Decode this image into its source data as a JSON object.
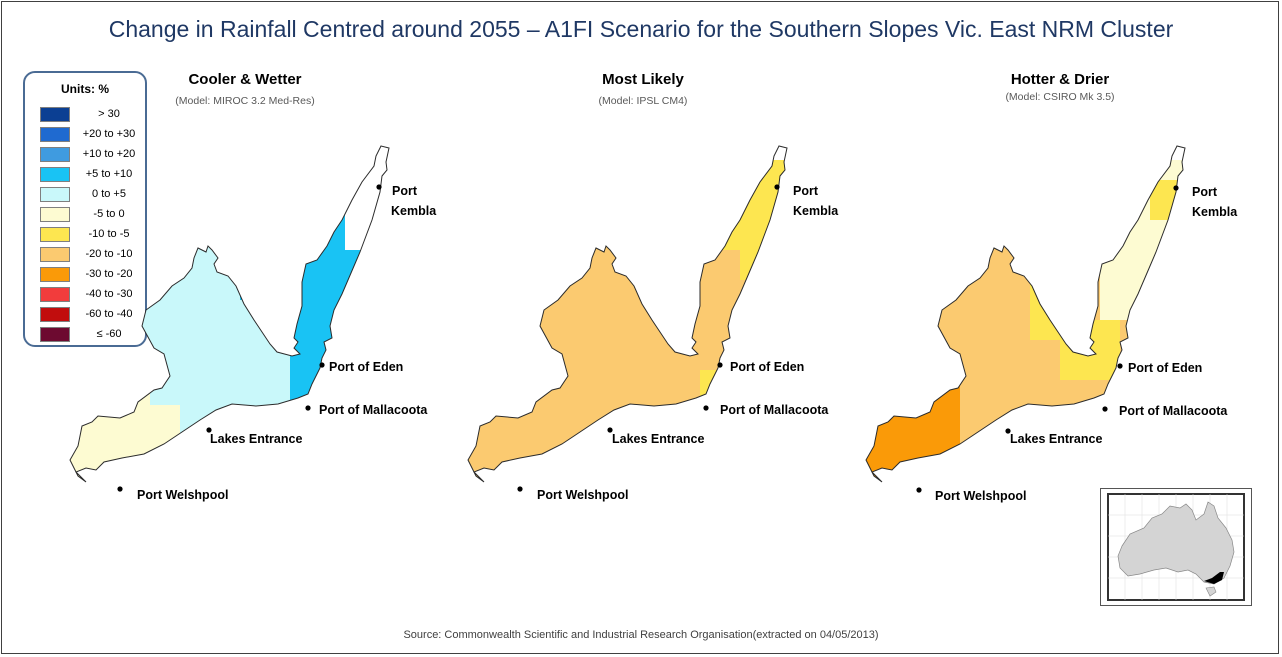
{
  "title": "Change in Rainfall Centred around 2055 – A1FI Scenario for the Southern Slopes Vic. East NRM Cluster",
  "legend": {
    "title": "Units: %",
    "items": [
      {
        "label": "> 30",
        "color": "#0b3f93"
      },
      {
        "label": "+20 to +30",
        "color": "#1f6ad0"
      },
      {
        "label": "+10 to +20",
        "color": "#3f9be0"
      },
      {
        "label": "+5 to +10",
        "color": "#19c3f4"
      },
      {
        "label": "0 to +5",
        "color": "#c9f8fa"
      },
      {
        "label": "-5 to 0",
        "color": "#fdfbd2"
      },
      {
        "label": "-10 to -5",
        "color": "#fde650"
      },
      {
        "label": "-20 to -10",
        "color": "#fbca70"
      },
      {
        "label": "-30 to -20",
        "color": "#fa9a08"
      },
      {
        "label": "-40 to -30",
        "color": "#f23c3c"
      },
      {
        "label": "-60 to -40",
        "color": "#c10d0d"
      },
      {
        "label": "≤ -60",
        "color": "#6d0a30"
      }
    ]
  },
  "panels": [
    {
      "title": "Cooler & Wetter",
      "subtitle": "(Model: MIROC 3.2 Med-Res)"
    },
    {
      "title": "Most Likely",
      "subtitle": "(Model: IPSL CM4)"
    },
    {
      "title": "Hotter & Drier",
      "subtitle": "(Model: CSIRO Mk 3.5)"
    }
  ],
  "places": {
    "port": "Port",
    "kembla": "Kembla",
    "eden": "Port of Eden",
    "mallacoota": "Port of Mallacoota",
    "lakes": "Lakes Entrance",
    "welshpool": "Port Welshpool"
  },
  "source": "Source: Commonwealth Scientific and Industrial Research Organisation(extracted on 04/05/2013)"
}
